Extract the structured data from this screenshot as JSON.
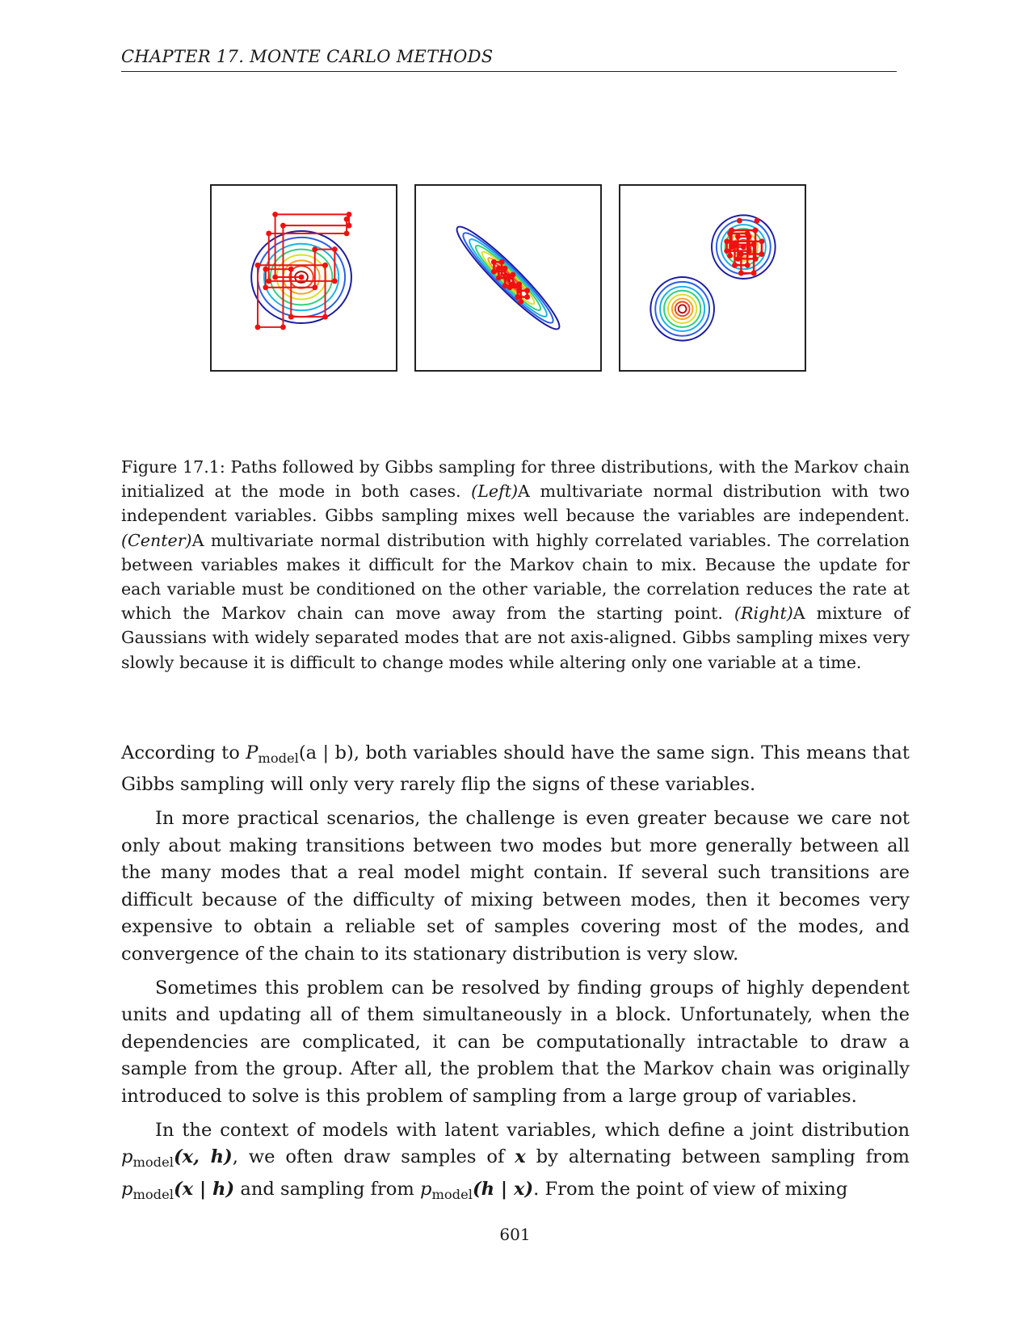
{
  "header": {
    "running_title": "CHAPTER 17.  MONTE CARLO METHODS"
  },
  "figure": {
    "panels": [
      "left",
      "center",
      "right"
    ],
    "colors": {
      "path": "#ee1111",
      "contours": [
        "#1a1aa0",
        "#2a5ee8",
        "#19b3e6",
        "#33d07a",
        "#d9e02a",
        "#f5a623",
        "#ee4422",
        "#aa1010"
      ]
    }
  },
  "caption": {
    "label": "Figure 17.1:",
    "part1": "Paths followed by Gibbs sampling for three distributions, with the Markov chain initialized at the mode in both cases.",
    "left_tag": "(Left)",
    "part2": "A multivariate normal distribution with two independent variables. Gibbs sampling mixes well because the variables are independent.",
    "center_tag": "(Center)",
    "part3": "A multivariate normal distribution with highly correlated variables. The correlation between variables makes it difficult for the Markov chain to mix. Because the update for each variable must be conditioned on the other variable, the correlation reduces the rate at which the Markov chain can move away from the starting point.",
    "right_tag": "(Right)",
    "part4": "A mixture of Gaussians with widely separated modes that are not axis-aligned. Gibbs sampling mixes very slowly because it is difficult to change modes while altering only one variable at a time."
  },
  "body": {
    "p1_a": "According to ",
    "p1_P": "P",
    "p1_sub": "model",
    "p1_arg": "(a | b)",
    "p1_b": ", both variables should have the same sign. This means that Gibbs sampling will only very rarely flip the signs of these variables.",
    "p2": "In more practical scenarios, the challenge is even greater because we care not only about making transitions between two modes but more generally between all the many modes that a real model might contain. If several such transitions are difficult because of the difficulty of mixing between modes, then it becomes very expensive to obtain a reliable set of samples covering most of the modes, and convergence of the chain to its stationary distribution is very slow.",
    "p3": "Sometimes this problem can be resolved by finding groups of highly dependent units and updating all of them simultaneously in a block. Unfortunately, when the dependencies are complicated, it can be computationally intractable to draw a sample from the group. After all, the problem that the Markov chain was originally introduced to solve is this problem of sampling from a large group of variables.",
    "p4_a": "In the context of models with latent variables, which define a joint distribution ",
    "p4_p": "p",
    "p4_sub": "model",
    "p4_args1": "(x, h)",
    "p4_b": ", we often draw samples of ",
    "p4_x": "x",
    "p4_c": " by alternating between sampling from ",
    "p4_args2": "(x | h)",
    "p4_d": " and sampling from ",
    "p4_args3": "(h | x)",
    "p4_e": ". From the point of view of mixing"
  },
  "footer": {
    "page_number": "601"
  }
}
